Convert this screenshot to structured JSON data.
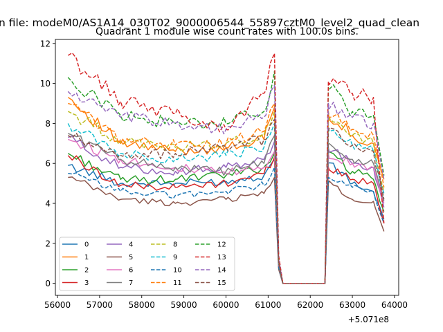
{
  "figure": {
    "suptitle": "n file: modeM0/AS1A14_030T02_9000006544_55897cztM0_level2_quad_clean",
    "title": "Quadrant 1 module wise count rates with 100.0s bins.",
    "offset_label": "+5.071e8"
  },
  "chart_data": {
    "type": "line",
    "title": "Quadrant 1 module wise count rates with 100.0s bins.",
    "xlabel": "",
    "ylabel": "",
    "x_offset": 507100000,
    "xlim": [
      55950,
      64100
    ],
    "ylim": [
      -0.6,
      12.2
    ],
    "xticks": [
      56000,
      57000,
      58000,
      59000,
      60000,
      61000,
      62000,
      63000,
      64000
    ],
    "xtick_labels": [
      "56000",
      "57000",
      "58000",
      "59000",
      "60000",
      "61000",
      "62000",
      "63000",
      "64000"
    ],
    "yticks": [
      0,
      2,
      4,
      6,
      8,
      10,
      12
    ],
    "ytick_labels": [
      "0",
      "2",
      "4",
      "6",
      "8",
      "10",
      "12"
    ],
    "grid": false,
    "legend": {
      "position": "lower-left",
      "columns": 4
    },
    "x_anchor_points": [
      56250,
      57500,
      58800,
      60000,
      60900,
      61150,
      61250,
      61350,
      62350,
      62430,
      63000,
      63500,
      63750
    ],
    "series": [
      {
        "name": "0",
        "color": "#1f77b4",
        "dashed": false,
        "values": [
          5.9,
          5.0,
          5.0,
          5.1,
          5.4,
          6.2,
          0.8,
          0.0,
          0.0,
          6.0,
          5.0,
          4.6,
          3.2
        ]
      },
      {
        "name": "1",
        "color": "#ff7f0e",
        "dashed": false,
        "values": [
          9.3,
          7.0,
          6.6,
          6.8,
          7.2,
          8.8,
          1.0,
          0.0,
          0.0,
          8.5,
          7.4,
          7.0,
          5.2
        ]
      },
      {
        "name": "2",
        "color": "#2ca02c",
        "dashed": false,
        "values": [
          6.5,
          5.2,
          5.2,
          5.4,
          5.8,
          6.5,
          0.9,
          0.0,
          0.0,
          6.5,
          5.6,
          5.2,
          3.6
        ]
      },
      {
        "name": "3",
        "color": "#d62728",
        "dashed": false,
        "values": [
          6.4,
          4.9,
          4.8,
          5.0,
          5.5,
          6.3,
          0.8,
          0.0,
          0.0,
          5.8,
          5.2,
          5.0,
          3.0
        ]
      },
      {
        "name": "4",
        "color": "#9467bd",
        "dashed": false,
        "values": [
          7.3,
          5.8,
          5.6,
          5.8,
          6.2,
          7.1,
          0.9,
          0.0,
          0.0,
          6.8,
          6.0,
          5.8,
          3.8
        ]
      },
      {
        "name": "5",
        "color": "#8c564b",
        "dashed": false,
        "values": [
          5.3,
          4.2,
          4.0,
          4.2,
          4.5,
          5.3,
          0.7,
          0.0,
          0.0,
          5.0,
          4.2,
          4.1,
          2.6
        ]
      },
      {
        "name": "6",
        "color": "#e377c2",
        "dashed": false,
        "values": [
          7.2,
          6.2,
          5.8,
          5.5,
          5.8,
          6.6,
          0.9,
          0.0,
          0.0,
          6.5,
          6.0,
          5.8,
          4.0
        ]
      },
      {
        "name": "7",
        "color": "#7f7f7f",
        "dashed": false,
        "values": [
          7.5,
          6.2,
          5.8,
          5.6,
          6.0,
          7.4,
          1.0,
          0.0,
          0.0,
          7.0,
          6.2,
          6.0,
          4.1
        ]
      },
      {
        "name": "8",
        "color": "#bcbd22",
        "dashed": true,
        "values": [
          8.6,
          7.1,
          6.8,
          7.0,
          7.4,
          8.6,
          1.0,
          0.0,
          0.0,
          8.1,
          7.4,
          7.0,
          4.6
        ]
      },
      {
        "name": "9",
        "color": "#17becf",
        "dashed": true,
        "values": [
          8.0,
          6.5,
          6.2,
          6.4,
          6.8,
          8.0,
          1.0,
          0.0,
          0.0,
          7.8,
          6.9,
          6.6,
          4.5
        ]
      },
      {
        "name": "10",
        "color": "#1f77b4",
        "dashed": true,
        "values": [
          5.5,
          4.6,
          4.4,
          4.6,
          4.9,
          5.8,
          0.8,
          0.0,
          0.0,
          5.3,
          4.8,
          4.6,
          3.0
        ]
      },
      {
        "name": "11",
        "color": "#ff7f0e",
        "dashed": true,
        "values": [
          9.0,
          7.2,
          6.9,
          7.0,
          7.6,
          9.0,
          1.1,
          0.0,
          0.0,
          8.6,
          7.7,
          7.4,
          4.8
        ]
      },
      {
        "name": "12",
        "color": "#2ca02c",
        "dashed": true,
        "values": [
          10.3,
          8.4,
          8.0,
          8.0,
          8.6,
          10.6,
          1.3,
          0.0,
          0.0,
          9.8,
          8.6,
          8.4,
          5.4
        ]
      },
      {
        "name": "13",
        "color": "#d62728",
        "dashed": true,
        "values": [
          11.4,
          9.1,
          8.5,
          7.7,
          9.5,
          11.5,
          1.4,
          0.0,
          0.0,
          10.1,
          9.5,
          9.3,
          3.0
        ]
      },
      {
        "name": "14",
        "color": "#9467bd",
        "dashed": true,
        "values": [
          9.6,
          8.3,
          8.0,
          7.7,
          8.3,
          9.9,
          1.2,
          0.0,
          0.0,
          9.0,
          8.3,
          8.0,
          5.2
        ]
      },
      {
        "name": "15",
        "color": "#8c564b",
        "dashed": true,
        "values": [
          7.4,
          6.4,
          6.5,
          6.8,
          7.2,
          8.2,
          1.0,
          0.0,
          0.0,
          7.6,
          6.9,
          6.6,
          4.2
        ]
      }
    ]
  }
}
